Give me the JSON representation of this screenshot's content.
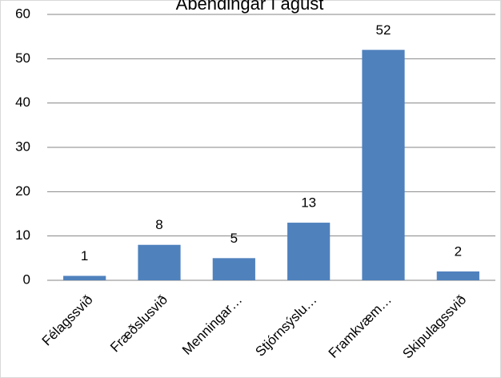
{
  "chart_data": {
    "type": "bar",
    "title": "Ábendingar í ágúst",
    "categories": [
      "Félagssvið",
      "Fræðslusvið",
      "Menningar…",
      "Stjórnsýslu…",
      "Framkvæm…",
      "Skipulagssvið"
    ],
    "values": [
      1,
      8,
      5,
      13,
      52,
      2
    ],
    "color": "#4f81bd",
    "ylim": [
      0,
      60
    ],
    "yticks": [
      0,
      10,
      20,
      30,
      40,
      50,
      60
    ],
    "grid": true
  }
}
